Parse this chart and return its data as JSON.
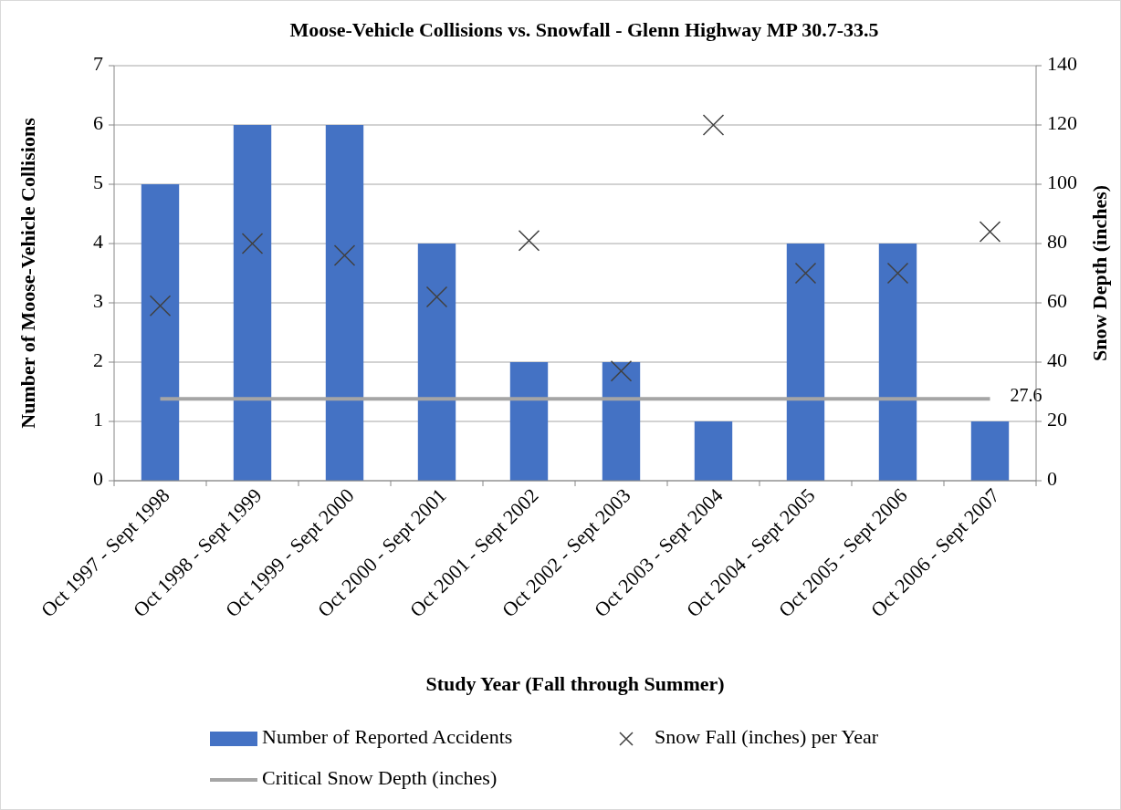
{
  "chart_data": {
    "type": "bar",
    "title": "Moose-Vehicle Collisions vs. Snowfall - Glenn Highway MP 30.7-33.5",
    "xlabel": "Study Year (Fall through Summer)",
    "ylabel": "Number of Moose-Vehicle Collisions",
    "y2label": "Snow Depth (inches)",
    "categories": [
      "Oct 1997 - Sept 1998",
      "Oct 1998 - Sept 1999",
      "Oct 1999 - Sept 2000",
      "Oct 2000 - Sept 2001",
      "Oct 2001 - Sept 2002",
      "Oct 2002 - Sept 2003",
      "Oct 2003 - Sept 2004",
      "Oct 2004 - Sept 2005",
      "Oct 2005 - Sept 2006",
      "Oct 2006 - Sept 2007"
    ],
    "series": [
      {
        "name": "Number of Reported Accidents",
        "color": "#4472c4",
        "values": [
          5,
          6,
          6,
          4,
          2,
          2,
          1,
          4,
          4,
          1
        ]
      },
      {
        "name": "Snow Fall (inches) per Year",
        "type": "scatter",
        "axis": "y2",
        "color": "#404040",
        "values": [
          59,
          80,
          76,
          62,
          81,
          37,
          120,
          70,
          70,
          84
        ]
      },
      {
        "name": "Critical Snow Depth (inches)",
        "type": "line",
        "marker": "none",
        "axis": "y2",
        "color": "#a5a5a5",
        "values": [
          27.6,
          27.6,
          27.6,
          27.6,
          27.6,
          27.6,
          27.6,
          27.6,
          27.6,
          27.6
        ],
        "value_labels": [
          null,
          null,
          null,
          null,
          null,
          null,
          null,
          null,
          null,
          "27.6"
        ]
      }
    ],
    "ylim": [
      0,
      7
    ],
    "yticks": [
      0,
      1,
      2,
      3,
      4,
      5,
      6,
      7
    ],
    "y2lim": [
      0,
      140
    ],
    "y2ticks": [
      0,
      20,
      40,
      60,
      80,
      100,
      120,
      140
    ],
    "grid": "y",
    "legend": "bottom",
    "marker": "cross"
  }
}
